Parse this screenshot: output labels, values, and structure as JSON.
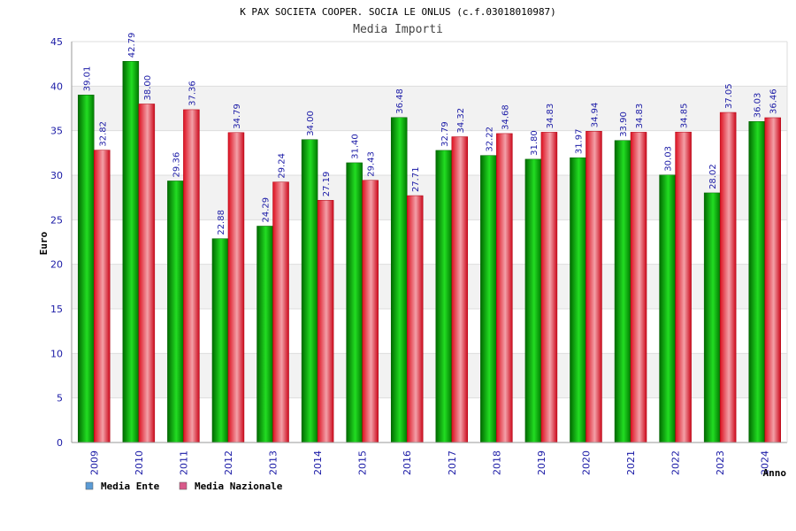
{
  "chart_data": {
    "type": "bar",
    "title": "K PAX SOCIETA COOPER. SOCIA LE ONLUS (c.f.03018010987)",
    "subtitle": "Media Importi",
    "xlabel": "Anno",
    "ylabel": "Euro",
    "ylim": [
      0,
      45
    ],
    "yticks": [
      0,
      5,
      10,
      15,
      20,
      25,
      30,
      35,
      40,
      45
    ],
    "grid": true,
    "legend_position": "bottom-left",
    "categories": [
      "2009",
      "2010",
      "2011",
      "2012",
      "2013",
      "2014",
      "2015",
      "2016",
      "2017",
      "2018",
      "2019",
      "2020",
      "2021",
      "2022",
      "2023",
      "2024"
    ],
    "series": [
      {
        "name": "Media Ente",
        "color": "#00aa00",
        "legend_color": "#5b9bd5",
        "values": [
          39.01,
          42.79,
          29.36,
          22.88,
          24.29,
          34.0,
          31.4,
          36.48,
          32.79,
          32.22,
          31.8,
          31.97,
          33.9,
          30.03,
          28.02,
          36.03
        ],
        "labels": [
          "39.01",
          "42.79",
          "29.36",
          "22.88",
          "24.29",
          "34.00",
          "31.40",
          "36.48",
          "32.79",
          "32.22",
          "31.80",
          "31.97",
          "33.90",
          "30.03",
          "28.02",
          "36.03"
        ]
      },
      {
        "name": "Media Nazionale",
        "color": "#dd1a2a",
        "legend_color": "#d85a8a",
        "values": [
          32.82,
          38.0,
          37.36,
          34.79,
          29.24,
          27.19,
          29.43,
          27.71,
          34.32,
          34.68,
          34.83,
          34.94,
          34.83,
          34.85,
          37.05,
          36.46
        ],
        "labels": [
          "32.82",
          "38.00",
          "37.36",
          "34.79",
          "29.24",
          "27.19",
          "29.43",
          "27.71",
          "34.32",
          "34.68",
          "34.83",
          "34.94",
          "34.83",
          "34.85",
          "37.05",
          "36.46"
        ]
      }
    ]
  }
}
